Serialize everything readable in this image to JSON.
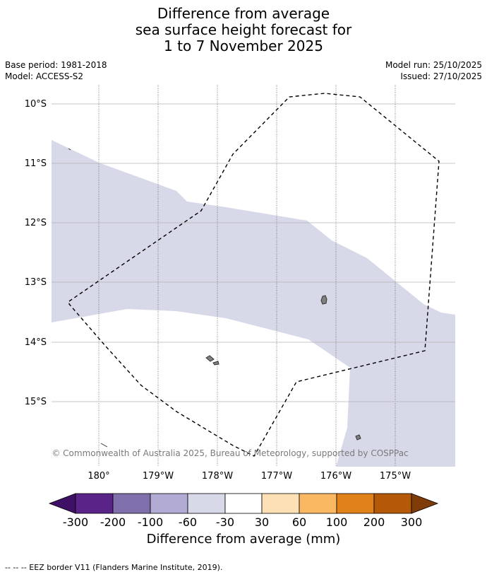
{
  "title": {
    "line1": "Difference from average",
    "line2": "sea surface height forecast for",
    "line3": "1 to 7 November 2025"
  },
  "meta": {
    "base_period": "Base period: 1981-2018",
    "model": "Model: ACCESS-S2",
    "model_run": "Model run: 25/10/2025",
    "issued": "Issued: 27/10/2025"
  },
  "map": {
    "lat_labels": [
      "10°S",
      "11°S",
      "12°S",
      "13°S",
      "14°S",
      "15°S"
    ],
    "lon_labels": [
      "180°",
      "179°W",
      "178°W",
      "177°W",
      "176°W",
      "175°W"
    ],
    "credit": "© Commonwealth of Australia 2025, Bureau of Meteorology, supported by COSPPac",
    "anomaly_fill_color": "#d7d8e8",
    "land_color": "#7f7f7f"
  },
  "colorbar": {
    "ticks": [
      "-300",
      "-200",
      "-100",
      "-60",
      "-30",
      "30",
      "60",
      "100",
      "200",
      "300"
    ],
    "colors": [
      "#3e1167",
      "#5a2388",
      "#7f6faa",
      "#b1abd3",
      "#d7d8e8",
      "#ffffff",
      "#fee0b6",
      "#fbb863",
      "#e1811a",
      "#b35907",
      "#7f3b08"
    ],
    "label": "Difference from average (mm)"
  },
  "footnote": "--  --  -- EEZ border V11 (Flanders Marine Institute, 2019)."
}
